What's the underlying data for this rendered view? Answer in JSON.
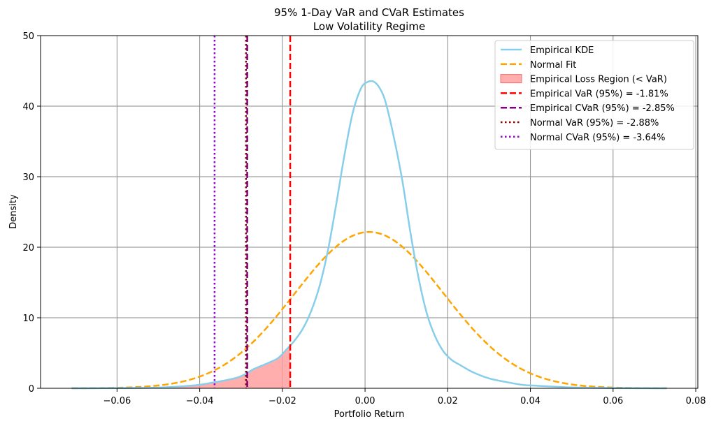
{
  "chart_data": {
    "type": "line",
    "title": "95% 1-Day VaR and CVaR Estimates",
    "subtitle": "Low Volatility Regime",
    "xlabel": "Portfolio Return",
    "ylabel": "Density",
    "xlim": [
      -0.0785,
      0.0805
    ],
    "ylim": [
      0,
      50
    ],
    "grid": true,
    "legend_position": "top-right",
    "x_ticks": [
      -0.06,
      -0.04,
      -0.02,
      0.0,
      0.02,
      0.04,
      0.06,
      0.08
    ],
    "x_tick_labels": [
      "−0.06",
      "−0.04",
      "−0.02",
      "0.00",
      "0.02",
      "0.04",
      "0.06",
      "0.08"
    ],
    "y_ticks": [
      0,
      10,
      20,
      30,
      40,
      50
    ],
    "y_tick_labels": [
      "0",
      "10",
      "20",
      "30",
      "40",
      "50"
    ],
    "series": [
      {
        "name": "Empirical KDE",
        "color": "#87CEEB",
        "style": "solid",
        "x": [
          -0.071,
          -0.06,
          -0.05,
          -0.045,
          -0.04,
          -0.037,
          -0.034,
          -0.031,
          -0.029,
          -0.027,
          -0.025,
          -0.023,
          -0.021,
          -0.019,
          -0.017,
          -0.015,
          -0.013,
          -0.011,
          -0.009,
          -0.007,
          -0.005,
          -0.003,
          -0.001,
          0.0005,
          0.002,
          0.0035,
          0.005,
          0.007,
          0.009,
          0.011,
          0.013,
          0.015,
          0.017,
          0.019,
          0.021,
          0.023,
          0.026,
          0.03,
          0.034,
          0.038,
          0.042,
          0.05,
          0.06,
          0.073
        ],
        "y": [
          0,
          0.02,
          0.1,
          0.25,
          0.5,
          0.8,
          1.1,
          1.5,
          2.0,
          2.7,
          3.2,
          3.7,
          4.3,
          5.5,
          6.8,
          8.5,
          11.0,
          14.5,
          19.5,
          26.0,
          33.0,
          39.0,
          42.5,
          43.4,
          43.5,
          42.6,
          40.5,
          35.5,
          29.5,
          22.0,
          15.5,
          10.5,
          7.3,
          5.2,
          4.0,
          3.3,
          2.3,
          1.4,
          0.9,
          0.5,
          0.35,
          0.12,
          0.03,
          0
        ]
      },
      {
        "name": "Normal Fit",
        "color": "#FFA500",
        "style": "dashed",
        "mean": 0.001,
        "std": 0.018,
        "x_range": [
          -0.071,
          0.073
        ]
      }
    ],
    "fill": {
      "name": "Empirical Loss Region (< VaR)",
      "color": "#FF9999",
      "x_max": -0.0181
    },
    "vlines": [
      {
        "name": "Empirical VaR (95%) = -1.81%",
        "x": -0.0181,
        "color": "#FF0000",
        "style": "dashed"
      },
      {
        "name": "Empirical CVaR (95%) = -2.85%",
        "x": -0.0285,
        "color": "#800080",
        "style": "dashed"
      },
      {
        "name": "Normal VaR (95%) = -2.88%",
        "x": -0.0288,
        "color": "#8B0000",
        "style": "dotted"
      },
      {
        "name": "Normal CVaR (95%) = -3.64%",
        "x": -0.0364,
        "color": "#9400D3",
        "style": "dotted"
      }
    ]
  }
}
